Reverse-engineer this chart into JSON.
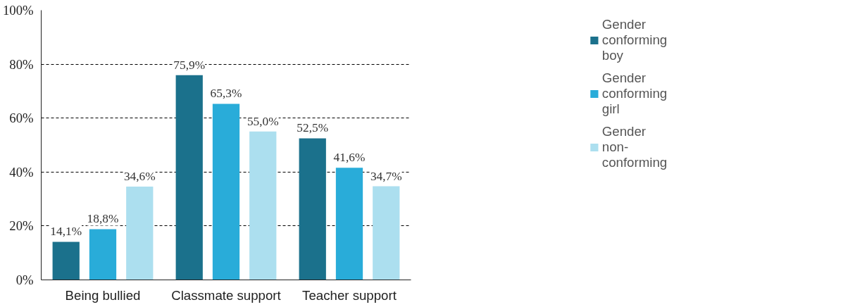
{
  "chart_data": {
    "type": "bar",
    "categories": [
      "Being bullied",
      "Classmate support",
      "Teacher support"
    ],
    "series": [
      {
        "name": "Gender conforming boy",
        "color": "#1b718c",
        "values": [
          14.1,
          75.9,
          52.5
        ],
        "value_labels": [
          "14,1%",
          "75,9%",
          "52,5%"
        ]
      },
      {
        "name": "Gender conforming girl",
        "color": "#29acd9",
        "values": [
          18.8,
          65.3,
          41.6
        ],
        "value_labels": [
          "18,8%",
          "65,3%",
          "41,6%"
        ]
      },
      {
        "name": "Gender non-conforming",
        "color": "#acdfef",
        "values": [
          34.6,
          55.0,
          34.7
        ],
        "value_labels": [
          "34,6%",
          "55,0%",
          "34,7%"
        ]
      }
    ],
    "ylim": [
      0,
      100
    ],
    "yticks": [
      {
        "value": 0,
        "label": "0%"
      },
      {
        "value": 20,
        "label": "20%"
      },
      {
        "value": 40,
        "label": "40%"
      },
      {
        "value": 60,
        "label": "60%"
      },
      {
        "value": 80,
        "label": "80%"
      },
      {
        "value": 100,
        "label": "100%"
      }
    ],
    "grid": "y",
    "legend": "right"
  }
}
